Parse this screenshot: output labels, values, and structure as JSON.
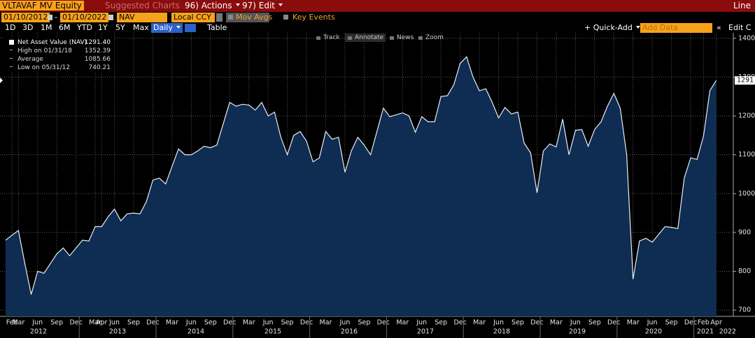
{
  "header": {
    "ticker": "VLTAVAF MV Equity",
    "suggested": "Suggested Charts",
    "actions": "96) Actions",
    "edit": "97) Edit",
    "chart_style": "Line"
  },
  "controls": {
    "start_date": "01/10/2012",
    "end_date": "01/10/2022",
    "field": "NAV",
    "currency": "Local CCY",
    "mov_avgs": "Mov Avgs",
    "key_events": "Key Events",
    "periods": [
      "1D",
      "3D",
      "1M",
      "6M",
      "YTD",
      "1Y",
      "5Y",
      "Max"
    ],
    "frequency": "Daily",
    "table": "Table",
    "quick_add": "+ Quick-Add",
    "add_data": "Add Data",
    "edit_chart": "Edit C"
  },
  "tools": [
    "Track",
    "Annotate",
    "News",
    "Zoom"
  ],
  "chart_data": {
    "type": "area",
    "categories": [
      null,
      "Feb",
      "Mar",
      null,
      null,
      "Jun",
      null,
      null,
      "Sep",
      null,
      null,
      "Dec",
      null,
      null,
      "Mar",
      "Apr",
      null,
      "Jun",
      null,
      null,
      "Sep",
      null,
      null,
      "Dec",
      null,
      null,
      "Mar",
      null,
      null,
      "Jun",
      null,
      null,
      "Sep",
      null,
      null,
      "Dec",
      null,
      null,
      "Mar",
      null,
      null,
      "Jun",
      null,
      null,
      "Sep",
      null,
      null,
      "Dec",
      null,
      null,
      "Mar",
      null,
      null,
      "Jun",
      null,
      null,
      "Sep",
      null,
      null,
      "Dec",
      null,
      null,
      "Mar",
      null,
      null,
      "Jun",
      null,
      null,
      "Sep",
      null,
      null,
      "Dec",
      null,
      null,
      "Mar",
      null,
      null,
      "Jun",
      null,
      null,
      "Sep",
      null,
      null,
      "Dec",
      null,
      null,
      "Mar",
      null,
      null,
      "Jun",
      null,
      null,
      "Sep",
      null,
      null,
      "Dec",
      null,
      null,
      "Mar",
      null,
      null,
      "Jun",
      null,
      null,
      "Sep",
      null,
      null,
      "Dec",
      null,
      "Feb",
      null,
      "Apr"
    ],
    "year_labels": [
      "2012",
      "2013",
      "2014",
      "2015",
      "2016",
      "2017",
      "2018",
      "2019",
      "2020",
      "2021",
      "2022"
    ],
    "series": [
      {
        "name": "Net Asset Value (NAV)",
        "color": "#0f2c52",
        "line_color": "#e8eef6",
        "values": [
          880,
          893,
          905,
          820,
          740.21,
          800,
          795,
          820,
          845,
          860,
          840,
          860,
          880,
          878,
          915,
          915,
          940,
          960,
          930,
          948,
          950,
          948,
          980,
          1035,
          1040,
          1025,
          1070,
          1115,
          1100,
          1100,
          1110,
          1122,
          1118,
          1125,
          1180,
          1235,
          1225,
          1230,
          1228,
          1215,
          1235,
          1200,
          1210,
          1145,
          1100,
          1150,
          1160,
          1135,
          1082,
          1092,
          1160,
          1140,
          1145,
          1055,
          1110,
          1145,
          1125,
          1100,
          1160,
          1220,
          1198,
          1203,
          1208,
          1200,
          1158,
          1198,
          1185,
          1185,
          1250,
          1252,
          1280,
          1335,
          1352.39,
          1300,
          1265,
          1270,
          1235,
          1195,
          1222,
          1205,
          1210,
          1130,
          1105,
          1002,
          1110,
          1128,
          1120,
          1192,
          1100,
          1163,
          1165,
          1122,
          1165,
          1185,
          1225,
          1258,
          1220,
          1100,
          780,
          878,
          885,
          875,
          895,
          915,
          913,
          910,
          1040,
          1092,
          1088,
          1148,
          1265,
          1291.4
        ]
      }
    ],
    "legend_value": "1291.40",
    "stats": [
      {
        "label": "High on 01/31/18",
        "value": "1352.39"
      },
      {
        "label": "Average",
        "value": "1085.66"
      },
      {
        "label": "Low on 05/31/12",
        "value": "740.21"
      }
    ],
    "last_value_label": "1291",
    "ylim": [
      684,
      1414
    ],
    "yticks": [
      700,
      800,
      900,
      1000,
      1100,
      1200,
      1300,
      1400
    ],
    "grid": true
  }
}
